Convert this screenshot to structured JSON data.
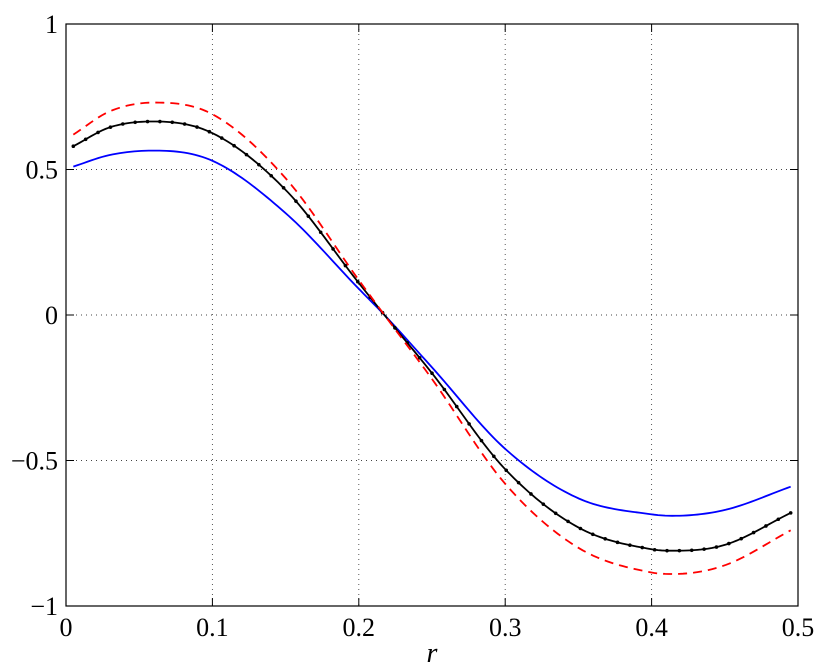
{
  "chart_data": {
    "type": "line",
    "title": "",
    "xlabel": "r",
    "ylabel": "",
    "xlim": [
      0,
      0.5
    ],
    "ylim": [
      -1,
      1
    ],
    "grid": true,
    "x_ticks": [
      "0",
      "0.1",
      "0.2",
      "0.3",
      "0.4",
      "0.5"
    ],
    "y_ticks": [
      "1",
      "0.5",
      "0",
      "−0.5",
      "−1"
    ],
    "x": [
      0.005,
      0.03,
      0.06,
      0.1,
      0.15,
      0.2,
      0.2175,
      0.25,
      0.3,
      0.35,
      0.4,
      0.415,
      0.45,
      0.495
    ],
    "series": [
      {
        "style": "solid",
        "color": "#0000ff",
        "markers": false,
        "values": [
          0.51,
          0.55,
          0.565,
          0.53,
          0.35,
          0.09,
          0.0,
          -0.18,
          -0.46,
          -0.63,
          -0.685,
          -0.69,
          -0.67,
          -0.59
        ]
      },
      {
        "style": "solid",
        "color": "#000000",
        "markers": true,
        "values": [
          0.58,
          0.645,
          0.665,
          0.625,
          0.43,
          0.11,
          0.0,
          -0.2,
          -0.53,
          -0.73,
          -0.805,
          -0.81,
          -0.79,
          -0.68
        ]
      },
      {
        "style": "dashed",
        "color": "#ff0000",
        "markers": false,
        "values": [
          0.62,
          0.7,
          0.73,
          0.69,
          0.47,
          0.12,
          0.0,
          -0.22,
          -0.58,
          -0.8,
          -0.885,
          -0.89,
          -0.86,
          -0.74
        ]
      }
    ]
  }
}
